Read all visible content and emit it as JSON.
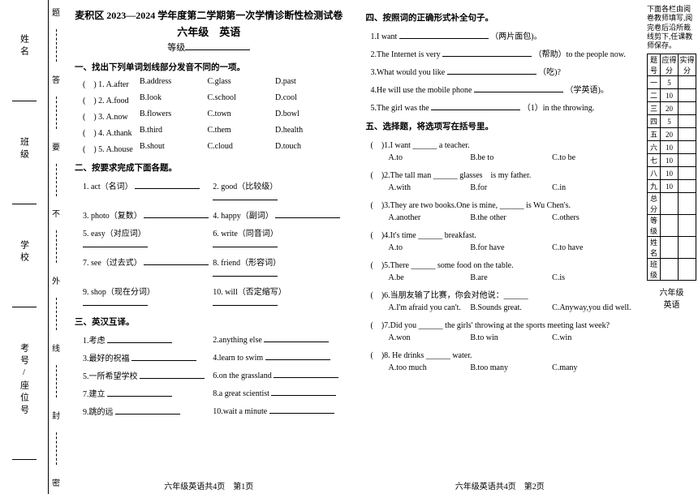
{
  "header": {
    "title": "麦积区 2023—2024 学年度第二学期第一次学情诊断性检测试卷",
    "subtitle": "六年级　英语",
    "grade_label": "等级"
  },
  "binding_labels": [
    "姓名",
    "班级",
    "学校",
    "考号/座位号"
  ],
  "seal_labels": [
    "题",
    "答",
    "要",
    "不",
    "外",
    "线",
    "封",
    "密"
  ],
  "s1": {
    "head": "一、找出下列单词划线部分发音不同的一项。",
    "rows": [
      {
        "n": "(　) 1. A.after",
        "b": "B.address",
        "c": "C.glass",
        "d": "D.past"
      },
      {
        "n": "(　) 2. A.food",
        "b": "B.look",
        "c": "C.school",
        "d": "D.cool"
      },
      {
        "n": "(　) 3. A.now",
        "b": "B.flowers",
        "c": "C.town",
        "d": "D.bowl"
      },
      {
        "n": "(　) 4. A.thank",
        "b": "B.third",
        "c": "C.them",
        "d": "D.health"
      },
      {
        "n": "(　) 5. A.house",
        "b": "B.shout",
        "c": "C.cloud",
        "d": "D.touch"
      }
    ]
  },
  "s2": {
    "head": "二、按要求完成下面各题。",
    "rows": [
      {
        "l": "1. act（名词）",
        "r": "2. good（比较级）"
      },
      {
        "l": "3. photo（复数）",
        "r": "4. happy（副词）"
      },
      {
        "l": "5. easy（对应词）",
        "r": "6. write（同音词）"
      },
      {
        "l": "7. see（过去式）",
        "r": "8. friend（形容词）"
      },
      {
        "l": "9. shop（现在分词）",
        "r": "10. will（否定缩写）"
      }
    ]
  },
  "s3": {
    "head": "三、英汉互译。",
    "rows": [
      {
        "l": "1.考虑",
        "r": "2.anything else"
      },
      {
        "l": "3.最好的祝福",
        "r": "4.learn to swim"
      },
      {
        "l": "5.一所希望学校",
        "r": "6.on the grassland"
      },
      {
        "l": "7.建立",
        "r": "8.a great scientist"
      },
      {
        "l": "9.跳的远",
        "r": "10.wait a minute"
      }
    ]
  },
  "s4": {
    "head": "四、按照词的正确形式补全句子。",
    "items": [
      {
        "pre": "1.I want ",
        "post": "（两片面包)。"
      },
      {
        "pre": "2.The Internet is very ",
        "post": "（帮助）to the people now."
      },
      {
        "pre": "3.What would you like ",
        "post": "（吃)?"
      },
      {
        "pre": "4.He will use the mobile phone ",
        "post": "（学英语)。"
      },
      {
        "pre": "5.The girl was the ",
        "post": "（1）in the throwing."
      }
    ]
  },
  "s5": {
    "head": "五、选择题，将选项写在括号里。",
    "items": [
      {
        "q": "(　)1.I want ______ a teacher.",
        "a": "A.to",
        "b": "B.be to",
        "c": "C.to be"
      },
      {
        "q": "(　)2.The tall man ______ glasses　is my father.",
        "a": "A.with",
        "b": "B.for",
        "c": "C.in"
      },
      {
        "q": "(　)3.They are two books.One is mine, ______ is Wu Chen's.",
        "a": "A.another",
        "b": "B.the other",
        "c": "C.others"
      },
      {
        "q": "(　)4.It's time ______ breakfast.",
        "a": "A.to",
        "b": "B.for have",
        "c": "C.to have"
      },
      {
        "q": "(　)5.There ______ some food on the table.",
        "a": "A.be",
        "b": "B.are",
        "c": "C.is"
      },
      {
        "q": "(　)6.当朋友输了比赛，你会对他说：______",
        "a": "A.I'm afraid you can't.",
        "b": "B.Sounds great.",
        "c": "C.Anyway,you did well."
      },
      {
        "q": "(　)7.Did you ______ the girls' throwing at the sports meeting last week?",
        "a": "A.won",
        "b": "B.to win",
        "c": "C.win"
      },
      {
        "q": "(　)8. He drinks ______ water.",
        "a": "A.too much",
        "b": "B.too many",
        "c": "C.many"
      }
    ]
  },
  "footer": {
    "p1": "六年级英语共4页　第1页",
    "p2": "六年级英语共4页　第2页"
  },
  "scorebox": {
    "note": "下面各栏由阅卷教师填写,阅完卷后沿所裁线剪下,任课教师保存。",
    "headers": [
      "题号",
      "应得分",
      "实得分"
    ],
    "rows": [
      [
        "一",
        "5",
        ""
      ],
      [
        "二",
        "10",
        ""
      ],
      [
        "三",
        "20",
        ""
      ],
      [
        "四",
        "5",
        ""
      ],
      [
        "五",
        "20",
        ""
      ],
      [
        "六",
        "10",
        ""
      ],
      [
        "七",
        "10",
        ""
      ],
      [
        "八",
        "10",
        ""
      ],
      [
        "九",
        "10",
        ""
      ],
      [
        "总分",
        "",
        ""
      ],
      [
        "等级",
        "",
        ""
      ],
      [
        "姓名",
        "",
        ""
      ],
      [
        "班级",
        "",
        ""
      ]
    ],
    "bottom": [
      "六年级",
      "英语"
    ]
  }
}
